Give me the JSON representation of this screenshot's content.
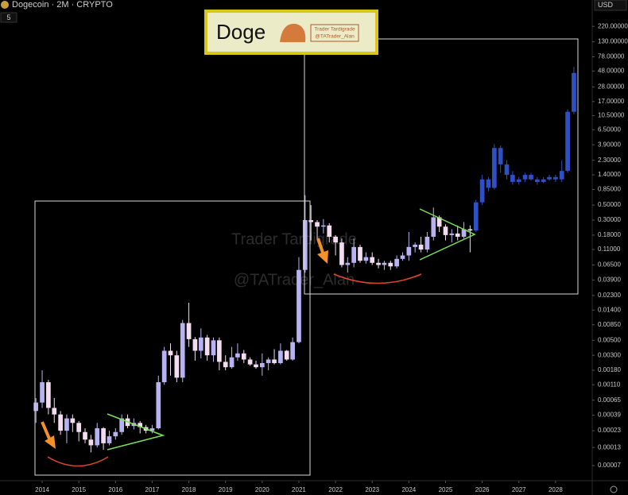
{
  "header": {
    "symbol": "Dogecoin · 2M · CRYPTO",
    "interval_badge": "5",
    "currency": "USD"
  },
  "logo": {
    "title": "Doge",
    "line1": "Trader Tardigrade",
    "line2": "@TATrader_Alan"
  },
  "watermark": {
    "line1": "Trader Tardigrade",
    "line2": "@TATrader_Alan"
  },
  "chart_data": {
    "type": "candlestick",
    "yscale": "log",
    "grid": false,
    "xlim": [
      2012.85,
      2029.0
    ],
    "ylim": [
      4.8e-05,
      540
    ],
    "xticks": [
      2014,
      2015,
      2016,
      2017,
      2018,
      2019,
      2020,
      2021,
      2022,
      2023,
      2024,
      2025,
      2026,
      2027,
      2028
    ],
    "yticks": [
      {
        "value": 220,
        "label": "220.00000"
      },
      {
        "value": 130,
        "label": "130.00000"
      },
      {
        "value": 78,
        "label": "78.00000"
      },
      {
        "value": 48,
        "label": "48.00000"
      },
      {
        "value": 28,
        "label": "28.00000"
      },
      {
        "value": 17,
        "label": "17.00000"
      },
      {
        "value": 10.5,
        "label": "10.50000"
      },
      {
        "value": 6.5,
        "label": "6.50000"
      },
      {
        "value": 3.9,
        "label": "3.90000"
      },
      {
        "value": 2.3,
        "label": "2.30000"
      },
      {
        "value": 1.4,
        "label": "1.40000"
      },
      {
        "value": 0.85,
        "label": "0.85000"
      },
      {
        "value": 0.5,
        "label": "0.50000"
      },
      {
        "value": 0.3,
        "label": "0.30000"
      },
      {
        "value": 0.18,
        "label": "0.18000"
      },
      {
        "value": 0.11,
        "label": "0.11000"
      },
      {
        "value": 0.065,
        "label": "0.06500"
      },
      {
        "value": 0.039,
        "label": "0.03900"
      },
      {
        "value": 0.023,
        "label": "0.02300"
      },
      {
        "value": 0.014,
        "label": "0.01400"
      },
      {
        "value": 0.0085,
        "label": "0.00850"
      },
      {
        "value": 0.005,
        "label": "0.00500"
      },
      {
        "value": 0.003,
        "label": "0.00300"
      },
      {
        "value": 0.0018,
        "label": "0.00180"
      },
      {
        "value": 0.0011,
        "label": "0.00110"
      },
      {
        "value": 0.00065,
        "label": "0.00065"
      },
      {
        "value": 0.00039,
        "label": "0.00039"
      },
      {
        "value": 0.00023,
        "label": "0.00023"
      },
      {
        "value": 0.00013,
        "label": "0.00013"
      },
      {
        "value": 7e-05,
        "label": "0.00007"
      }
    ],
    "series": [
      {
        "color_up": "#b9b2f2",
        "color_down": "#f3dcf0",
        "x": [
          2013.83,
          2014.0,
          2014.17,
          2014.33,
          2014.5,
          2014.67,
          2014.83,
          2015.0,
          2015.17,
          2015.33,
          2015.5,
          2015.67,
          2015.83,
          2016.0,
          2016.17,
          2016.33,
          2016.5,
          2016.67,
          2016.83,
          2017.0,
          2017.17,
          2017.33,
          2017.5,
          2017.67,
          2017.83,
          2018.0,
          2018.17,
          2018.33,
          2018.5,
          2018.67,
          2018.83,
          2019.0,
          2019.17,
          2019.33,
          2019.5,
          2019.67,
          2019.83,
          2020.0,
          2020.17,
          2020.33,
          2020.5,
          2020.67,
          2020.83,
          2021.0,
          2021.17,
          2021.33,
          2021.5,
          2021.67,
          2021.83,
          2022.0,
          2022.17,
          2022.33,
          2022.5,
          2022.67,
          2022.83,
          2023.0,
          2023.17,
          2023.33,
          2023.5,
          2023.67,
          2023.83,
          2024.0,
          2024.17,
          2024.33,
          2024.5,
          2024.67,
          2024.83,
          2025.0,
          2025.17,
          2025.33,
          2025.5,
          2025.67
        ],
        "open": [
          0.00045,
          0.0006,
          0.0012,
          0.0005,
          0.0004,
          0.00023,
          0.00035,
          0.0003,
          0.00022,
          0.00017,
          0.00014,
          0.00025,
          0.00015,
          0.00019,
          0.00022,
          0.00035,
          0.00027,
          0.0003,
          0.00026,
          0.00023,
          0.00025,
          0.0012,
          0.0035,
          0.003,
          0.0014,
          0.009,
          0.0052,
          0.0035,
          0.0055,
          0.003,
          0.005,
          0.0024,
          0.002,
          0.0028,
          0.0032,
          0.0026,
          0.0022,
          0.002,
          0.0023,
          0.0026,
          0.0023,
          0.0035,
          0.0026,
          0.0047,
          0.055,
          0.3,
          0.28,
          0.24,
          0.25,
          0.17,
          0.14,
          0.065,
          0.07,
          0.12,
          0.075,
          0.085,
          0.07,
          0.065,
          0.07,
          0.062,
          0.08,
          0.09,
          0.12,
          0.13,
          0.11,
          0.17,
          0.33,
          0.24,
          0.18,
          0.19,
          0.17,
          0.22
        ],
        "high": [
          0.0007,
          0.0018,
          0.0013,
          0.0007,
          0.00045,
          0.0004,
          0.0004,
          0.00032,
          0.00025,
          0.0002,
          0.0003,
          0.00026,
          0.00023,
          0.00025,
          0.0004,
          0.0004,
          0.00035,
          0.00032,
          0.00028,
          0.00028,
          0.0015,
          0.004,
          0.0045,
          0.0035,
          0.01,
          0.018,
          0.0056,
          0.0075,
          0.006,
          0.0055,
          0.0055,
          0.003,
          0.004,
          0.0045,
          0.0036,
          0.0028,
          0.0025,
          0.0032,
          0.0028,
          0.0037,
          0.0045,
          0.0036,
          0.0055,
          0.085,
          0.7,
          0.5,
          0.3,
          0.31,
          0.27,
          0.18,
          0.16,
          0.085,
          0.16,
          0.13,
          0.1,
          0.1,
          0.08,
          0.075,
          0.075,
          0.09,
          0.1,
          0.2,
          0.14,
          0.17,
          0.2,
          0.46,
          0.35,
          0.26,
          0.22,
          0.25,
          0.28,
          0.25
        ],
        "low": [
          0.0003,
          0.0005,
          0.0004,
          0.0003,
          0.0002,
          0.00015,
          0.00022,
          0.00016,
          0.00015,
          0.00011,
          0.00013,
          0.00012,
          0.00014,
          0.00017,
          0.0002,
          0.00025,
          0.00024,
          0.00021,
          0.00021,
          0.00021,
          0.00024,
          0.0011,
          0.0015,
          0.0012,
          0.0012,
          0.004,
          0.0025,
          0.0027,
          0.0025,
          0.0024,
          0.0018,
          0.0018,
          0.0019,
          0.0025,
          0.0023,
          0.0021,
          0.0019,
          0.0015,
          0.0018,
          0.0022,
          0.0022,
          0.0025,
          0.0025,
          0.0045,
          0.05,
          0.15,
          0.16,
          0.19,
          0.14,
          0.09,
          0.06,
          0.05,
          0.06,
          0.07,
          0.068,
          0.065,
          0.058,
          0.055,
          0.055,
          0.058,
          0.075,
          0.075,
          0.1,
          0.1,
          0.1,
          0.15,
          0.2,
          0.15,
          0.14,
          0.15,
          0.16,
          0.1
        ],
        "close": [
          0.0006,
          0.0012,
          0.0005,
          0.0004,
          0.00023,
          0.00035,
          0.0003,
          0.00022,
          0.00017,
          0.00014,
          0.00025,
          0.00015,
          0.00019,
          0.00022,
          0.00035,
          0.00027,
          0.0003,
          0.00026,
          0.00023,
          0.00025,
          0.0012,
          0.0035,
          0.003,
          0.0014,
          0.009,
          0.0052,
          0.0035,
          0.0055,
          0.003,
          0.005,
          0.0024,
          0.002,
          0.0028,
          0.0032,
          0.0026,
          0.0022,
          0.002,
          0.0023,
          0.0026,
          0.0023,
          0.0035,
          0.0026,
          0.0047,
          0.055,
          0.3,
          0.28,
          0.24,
          0.25,
          0.17,
          0.14,
          0.065,
          0.07,
          0.12,
          0.075,
          0.085,
          0.07,
          0.065,
          0.07,
          0.062,
          0.08,
          0.09,
          0.12,
          0.13,
          0.11,
          0.17,
          0.33,
          0.24,
          0.18,
          0.19,
          0.17,
          0.22,
          0.21
        ]
      },
      {
        "color_up": "#2f4fc4",
        "color_down": "#2f4fc4",
        "x": [
          2025.83,
          2026.0,
          2026.17,
          2026.33,
          2026.5,
          2026.67,
          2026.83,
          2027.0,
          2027.17,
          2027.33,
          2027.5,
          2027.67,
          2027.83,
          2028.0,
          2028.17,
          2028.33,
          2028.5
        ],
        "open": [
          0.21,
          0.55,
          1.2,
          0.9,
          3.5,
          2,
          1.4,
          1.1,
          1.2,
          1.4,
          1.2,
          1.1,
          1.2,
          1.3,
          1.2,
          1.6,
          12
        ],
        "high": [
          0.6,
          1.4,
          1.3,
          4,
          3.8,
          2.3,
          1.6,
          1.3,
          1.5,
          1.5,
          1.3,
          1.3,
          1.4,
          1.4,
          2.3,
          13,
          55
        ],
        "low": [
          0.2,
          0.5,
          0.8,
          0.85,
          1.5,
          1.2,
          1.0,
          1.0,
          1.1,
          1.15,
          1.0,
          1.05,
          1.15,
          1.1,
          1.1,
          1.5,
          11
        ],
        "close": [
          0.55,
          1.2,
          0.9,
          3.5,
          2,
          1.4,
          1.1,
          1.2,
          1.4,
          1.2,
          1.1,
          1.2,
          1.3,
          1.2,
          1.6,
          12,
          45
        ]
      }
    ]
  }
}
